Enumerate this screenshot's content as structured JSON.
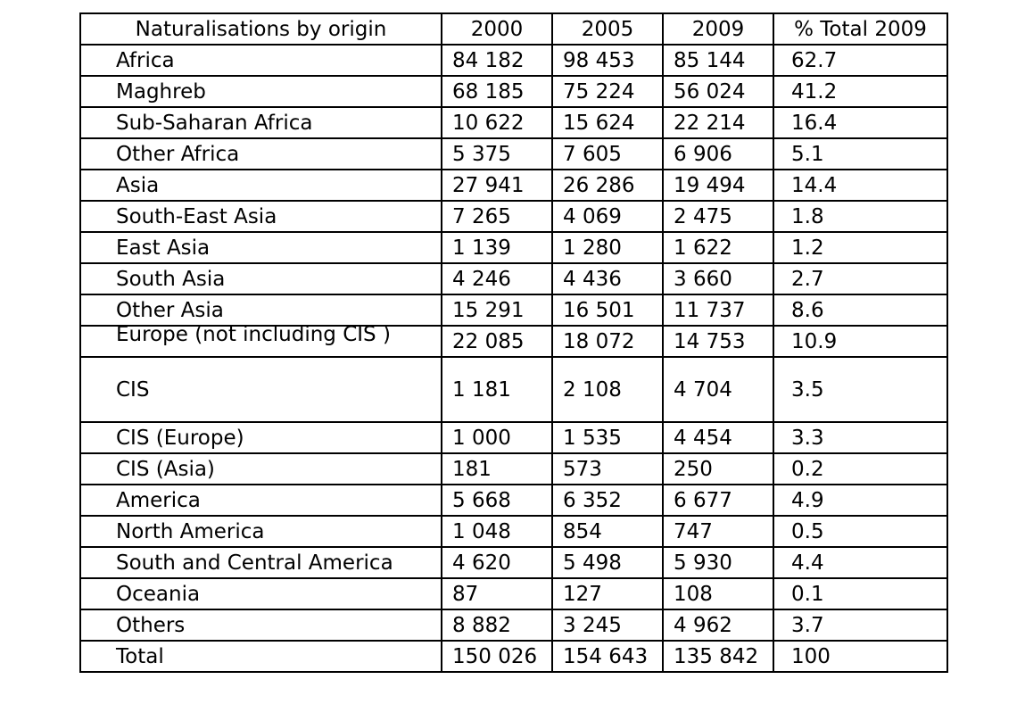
{
  "table": {
    "headers": [
      "Naturalisations by origin",
      "2000",
      "2005",
      "2009",
      "% Total 2009"
    ],
    "rows": [
      [
        "Africa",
        "84 182",
        "98 453",
        "85 144",
        "62.7"
      ],
      [
        "Maghreb",
        "68 185",
        "75 224",
        "56 024",
        "41.2"
      ],
      [
        "Sub-Saharan Africa",
        "10 622",
        "15 624",
        "22 214",
        "16.4"
      ],
      [
        "Other Africa",
        "5 375",
        "7 605",
        "6 906",
        "5.1"
      ],
      [
        "Asia",
        "27 941",
        "26 286",
        "19 494",
        "14.4"
      ],
      [
        "South-East Asia",
        "7 265",
        "4 069",
        "2 475",
        "1.8"
      ],
      [
        "East Asia",
        "1 139",
        "1 280",
        "1 622",
        "1.2"
      ],
      [
        "South Asia",
        "4 246",
        "4 436",
        "3 660",
        "2.7"
      ],
      [
        "Other Asia",
        "15 291",
        "16 501",
        "11 737",
        "8.6"
      ],
      [
        "Europe (not including CIS )",
        "22 085",
        "18 072",
        "14 753",
        "10.9"
      ],
      [
        "CIS",
        "1 181",
        "2 108",
        "4 704",
        "3.5"
      ],
      [
        "CIS (Europe)",
        "1 000",
        "1 535",
        "4 454",
        "3.3"
      ],
      [
        "CIS (Asia)",
        "181",
        "573",
        "250",
        "0.2"
      ],
      [
        "America",
        "5 668",
        "6 352",
        "6 677",
        "4.9"
      ],
      [
        "North America",
        "1 048",
        "854",
        "747",
        "0.5"
      ],
      [
        "South and Central America",
        "4 620",
        "5 498",
        "5 930",
        "4.4"
      ],
      [
        "Oceania",
        "87",
        "127",
        "108",
        "0.1"
      ],
      [
        "Others",
        "8 882",
        "3 245",
        "4 962",
        "3.7"
      ],
      [
        "Total",
        "150 026",
        "154 643",
        "135 842",
        "100"
      ]
    ]
  }
}
